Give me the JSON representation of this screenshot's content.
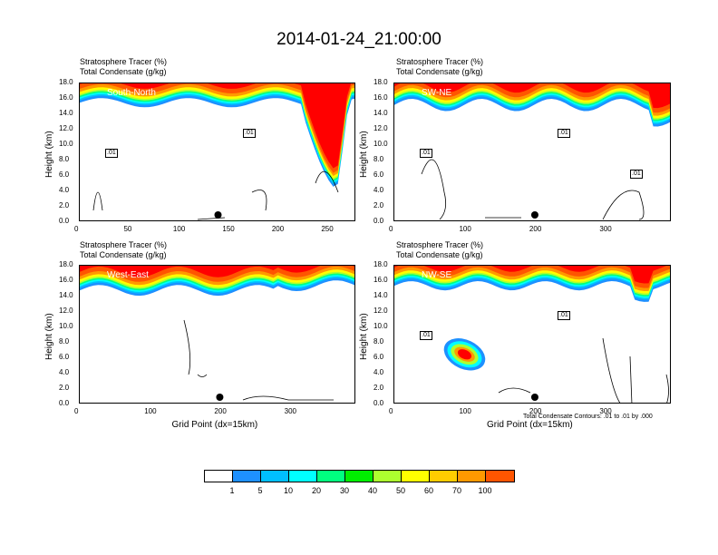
{
  "title": "2014-01-24_21:00:00",
  "chart_data": [
    {
      "type": "heatmap",
      "field_title": "Stratosphere Tracer   (%)",
      "contour_title": "Total Condensate   (g/kg)",
      "region": "South-North",
      "ylabel": "Height (km)",
      "xlabel": "",
      "yticks": [
        "0.0",
        "2.0",
        "4.0",
        "6.0",
        "8.0",
        "10.0",
        "12.0",
        "14.0",
        "16.0",
        "18.0"
      ],
      "xticks": [
        "0",
        "50",
        "100",
        "150",
        "200",
        "250"
      ],
      "xlim": [
        0,
        280
      ],
      "ylim": [
        0,
        18
      ],
      "contour_labels": [
        ".01",
        ".01"
      ],
      "marker_x": 140
    },
    {
      "type": "heatmap",
      "field_title": "Stratosphere Tracer   (%)",
      "contour_title": "Total Condensate   (g/kg)",
      "region": "SW-NE",
      "ylabel": "Height (km)",
      "xlabel": "",
      "yticks": [
        "0.0",
        "2.0",
        "4.0",
        "6.0",
        "8.0",
        "10.0",
        "12.0",
        "14.0",
        "16.0",
        "18.0"
      ],
      "xticks": [
        "0",
        "100",
        "200",
        "300"
      ],
      "xlim": [
        0,
        395
      ],
      "ylim": [
        0,
        18
      ],
      "contour_labels": [
        ".01",
        ".01",
        ".01"
      ],
      "marker_x": 200
    },
    {
      "type": "heatmap",
      "field_title": "Stratosphere Tracer   (%)",
      "contour_title": "Total Condensate   (g/kg)",
      "region": "West-East",
      "ylabel": "Height (km)",
      "xlabel": "Grid Point (dx=15km)",
      "yticks": [
        "0.0",
        "2.0",
        "4.0",
        "6.0",
        "8.0",
        "10.0",
        "12.0",
        "14.0",
        "16.0",
        "18.0"
      ],
      "xticks": [
        "0",
        "100",
        "200",
        "300"
      ],
      "xlim": [
        0,
        395
      ],
      "ylim": [
        0,
        18
      ],
      "contour_labels": [],
      "marker_x": 200
    },
    {
      "type": "heatmap",
      "field_title": "Stratosphere Tracer   (%)",
      "contour_title": "Total Condensate   (g/kg)",
      "region": "NW-SE",
      "ylabel": "Height (km)",
      "xlabel": "Grid Point (dx=15km)",
      "note": "Total Condensate Contours: .01 to .01 by .000",
      "yticks": [
        "0.0",
        "2.0",
        "4.0",
        "6.0",
        "8.0",
        "10.0",
        "12.0",
        "14.0",
        "16.0",
        "18.0"
      ],
      "xticks": [
        "0",
        "100",
        "200",
        "300"
      ],
      "xlim": [
        0,
        395
      ],
      "ylim": [
        0,
        18
      ],
      "contour_labels": [
        ".01",
        ".01"
      ],
      "marker_x": 200
    }
  ],
  "colorbar": {
    "labels": [
      "1",
      "5",
      "10",
      "20",
      "30",
      "40",
      "50",
      "60",
      "70",
      "100"
    ],
    "colors": [
      "#ffffff",
      "#1e90ff",
      "#00bfff",
      "#00ffff",
      "#00ff7f",
      "#00ee00",
      "#adff2f",
      "#ffff00",
      "#ffcc00",
      "#ff9900",
      "#ff5500",
      "#ff0000"
    ]
  }
}
